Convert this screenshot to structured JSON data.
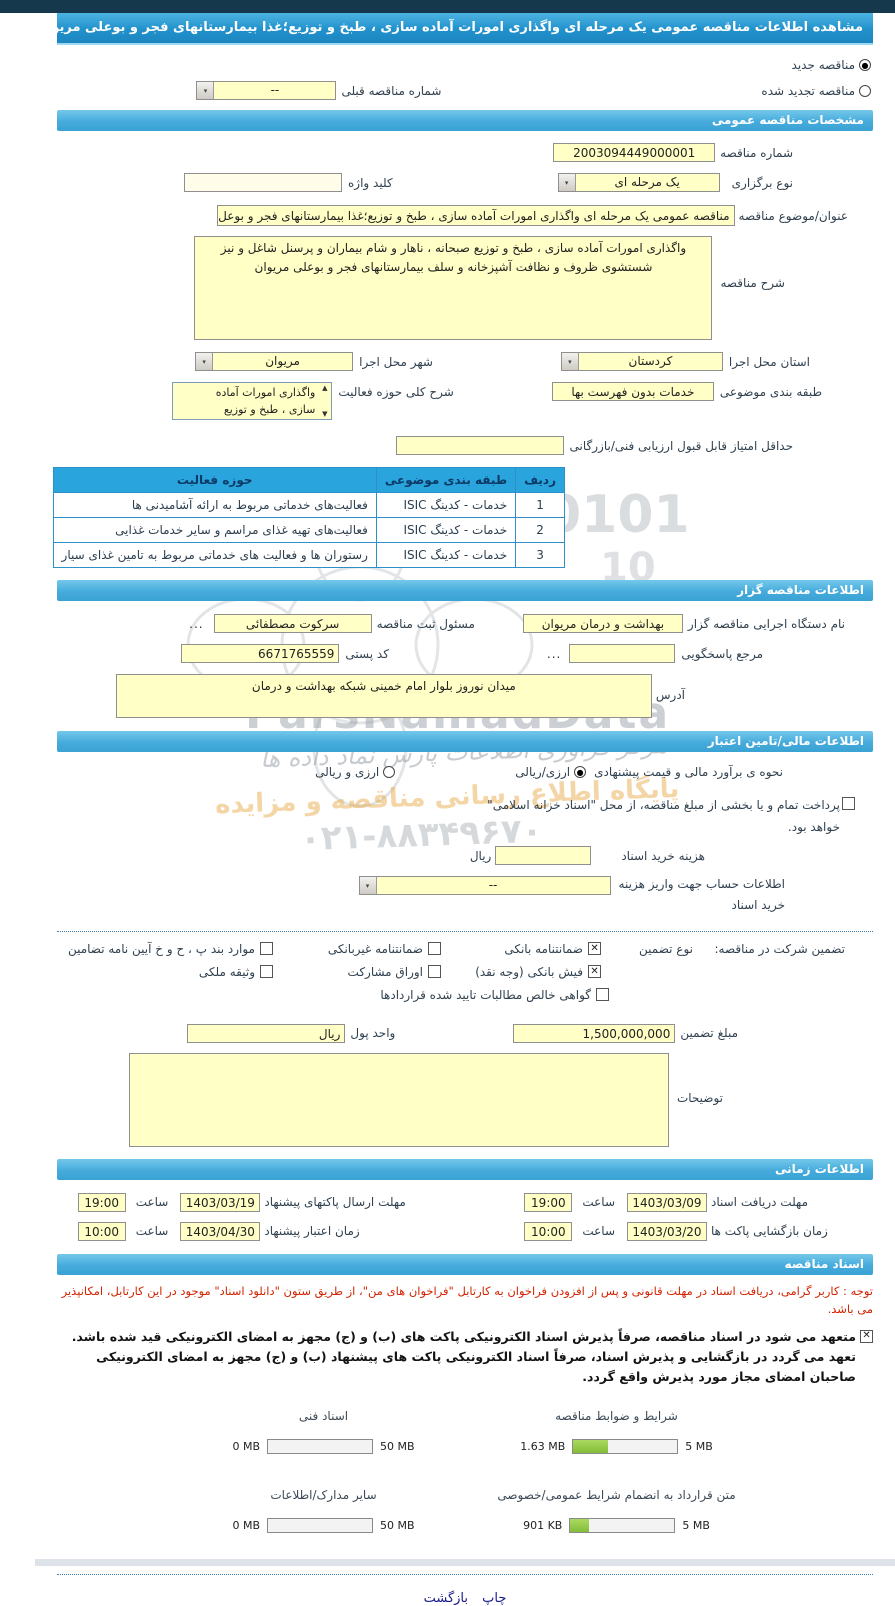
{
  "colors": {
    "accent_blue": "#3aa2d4",
    "field_yellow": "#ffffc6",
    "table_header": "#2aa4dd",
    "progress_green": "#82bd38",
    "notice_red": "#d42300",
    "link_navy": "#18188c"
  },
  "icons": {
    "more": "...",
    "combo_arrow": "▾",
    "scroll_up": "▲",
    "scroll_down": "▼"
  },
  "title_bar": {
    "text": "مشاهده اطلاعات مناقصه عمومی یک مرحله ای واگذاری امورات آماده سازی ، طبخ و توزیع؛غذا بیمارستانهای فجر و بوعلی مریوان"
  },
  "tender_mode": {
    "new_label": "مناقصه جدید",
    "new_selected": true,
    "renewed_label": "مناقصه تجدید شده",
    "renewed_selected": false,
    "prev_number_label": "شماره مناقصه قبلی",
    "prev_number_value": "--"
  },
  "general": {
    "header": "مشخصات مناقصه عمومی",
    "tender_no_label": "شماره مناقصه",
    "tender_no": "2003094449000001",
    "holding_type_label": "نوع برگزاری",
    "holding_type": "یک مرحله ای",
    "keyword_label": "کلید واژه",
    "keyword": "",
    "subject_label": "عنوان/موضوع مناقصه",
    "subject": "مناقصه عمومی یک مرحله ای واگذاری امورات آماده سازی ،  طبخ  و توزیع؛غذا بیمارستانهای فجر و بوعل",
    "desc_label": "شرح مناقصه",
    "desc": "واگذاری امورات آماده سازی ،  طبخ  و توزیع صبحانه ، ناهار و شام بیماران و پرسنل شاغل و نیز شستشوی ظروف و نظافت آشپزخانه و سلف بیمارستانهای فجر و بوعلی مریوان",
    "province_label": "استان محل اجرا",
    "province": "کردستان",
    "city_label": "شهر محل اجرا",
    "city": "مریوان",
    "category_label": "طبقه بندی موضوعی",
    "category": "خدمات بدون فهرست بها",
    "activity_label": "شرح کلی حوزه فعالیت",
    "activity_line1": "واگذاری امورات آماده",
    "activity_line2": "سازی ،  طبخ  و توزیع",
    "min_score_label": "حداقل امتیاز قابل قبول ارزیابی فنی/بازرگانی",
    "min_score": ""
  },
  "category_table": {
    "headers": {
      "row": "ردیف",
      "category": "طبقه بندی موضوعی",
      "activity": "حوزه فعالیت"
    },
    "rows": [
      {
        "num": "1",
        "category": "خدمات - کدینگ ISIC",
        "activity": "فعالیت‌های خدماتی مربوط به ارائه آشامیدنی ها"
      },
      {
        "num": "2",
        "category": "خدمات - کدینگ ISIC",
        "activity": "فعالیت‌های تهیه غذای مراسم و سایر خدمات غذایی"
      },
      {
        "num": "3",
        "category": "خدمات - کدینگ ISIC",
        "activity": "رستوران ها و فعالیت های خدماتی مربوط به تامین غذای سیار"
      }
    ]
  },
  "agency": {
    "header": "اطلاعات مناقصه گزار",
    "agency_label": "نام دستگاه اجرایی مناقصه گزار",
    "agency": "بهداشت و درمان مریوان",
    "registrar_label": "مسئول ثبت مناقصه",
    "registrar": "سرکوت مصطفائی",
    "contact_label": "مرجع پاسخگویی",
    "contact": "",
    "postal_label": "کد پستی",
    "postal_code": "6671765559",
    "address_label": "آدرس",
    "address": "میدان نوروز بلوار امام خمینی شبکه بهداشت و درمان"
  },
  "financial": {
    "header": "اطلاعات مالی/تامین اعتبار",
    "estimate_label": "نحوه ی برآورد مالی و قیمت پیشنهادی",
    "options": [
      {
        "label": "ارزی/ریالی",
        "selected": true
      },
      {
        "label": "ارزی و ریالی",
        "selected": false
      }
    ],
    "treasury": {
      "checked": false,
      "line1": "پرداخت تمام و یا بخشی از مبلغ مناقصه، از محل \"اسناد خزانه اسلامی\"",
      "line2": "خواهد بود."
    },
    "doc_fee_label": "هزینه خرید اسناد",
    "doc_fee": "",
    "currency_suffix": "ریال",
    "account_label_line1": "اطلاعات حساب جهت واریز هزینه",
    "account_label_line2": "خرید اسناد",
    "account_value": "--"
  },
  "guarantee": {
    "label": "تضمین شرکت در مناقصه:",
    "type_label": "نوع تضمین",
    "types": [
      {
        "label": "ضمانتنامه بانکی",
        "checked": true
      },
      {
        "label": "ضمانتنامه غیربانکی",
        "checked": false
      },
      {
        "label": "موارد بند پ ، ح و خ آیین نامه تضامین",
        "checked": false
      },
      {
        "label": "فیش بانکی (وجه نقد)",
        "checked": true
      },
      {
        "label": "اوراق مشارکت",
        "checked": false
      },
      {
        "label": "وثیقه ملکی",
        "checked": false
      },
      {
        "label": "گواهی خالص مطالبات تایید شده قراردادها",
        "checked": false
      }
    ],
    "amount_label": "مبلغ تضمین",
    "amount": "1,500,000,000",
    "currency_label": "واحد پول",
    "currency": "ریال",
    "notes_label": "توضیحات",
    "notes": ""
  },
  "time": {
    "header": "اطلاعات زمانی",
    "hour_label": "ساعت",
    "items": [
      {
        "label": "مهلت دریافت اسناد",
        "date": "1403/03/09",
        "time": "19:00"
      },
      {
        "label": "مهلت ارسال پاکتهای پیشنهاد",
        "date": "1403/03/19",
        "time": "19:00"
      },
      {
        "label": "زمان بازگشایی پاکت ها",
        "date": "1403/03/20",
        "time": "10:00"
      },
      {
        "label": "زمان اعتبار پیشنهاد",
        "date": "1403/04/30",
        "time": "10:00"
      }
    ]
  },
  "docs": {
    "header": "اسناد مناقصه",
    "notice": "توجه : کاربر گرامی، دریافت اسناد در مهلت قانونی و پس از افزودن فراخوان به کارتابل \"فراخوان های من\"، از طریق ستون \"دانلود اسناد\" موجود در این کارتابل، امکانپذیر می باشد.",
    "commitment": {
      "checked": true,
      "text": "متعهد می شود در اسناد مناقصه، صرفاً پذیرش اسناد الکترونیکی پاکت های (ب) و (ج) مجهز به امضای الکترونیکی قید شده باشد. تعهد می گردد در بازگشایی و پذیرش اسناد، صرفاً اسناد الکترونیکی پاکت های پیشنهاد (ب) و (ج) مجهز به امضای الکترونیکی صاحبان امضای مجاز مورد پذیرش واقع گردد."
    },
    "uploads": [
      {
        "label": "شرایط و ضوابط مناقصه",
        "current": "1.63 MB",
        "max": "5 MB",
        "percent": 33
      },
      {
        "label": "اسناد فنی",
        "current": "0 MB",
        "max": "50 MB",
        "percent": 0
      },
      {
        "label": "متن قرارداد به انضمام شرایط عمومی/خصوصی",
        "current": "901 KB",
        "max": "5 MB",
        "percent": 18
      },
      {
        "label": "سایر مدارک/اطلاعات",
        "current": "0 MB",
        "max": "50 MB",
        "percent": 0
      }
    ]
  },
  "footer": {
    "print_label": "چاپ",
    "back_label": "بازگشت"
  },
  "watermarks": {
    "brand": "ParsNamadData",
    "digits1": "0101",
    "digits2": "10",
    "line1": "مرکز فراوری اطلاعات پارس نماد داده ها",
    "line2": "پایگاه اطلاع رسانی مناقصه و مزایده",
    "phone": "۰۲۱-۸۸۳۴۹۶۷۰"
  }
}
